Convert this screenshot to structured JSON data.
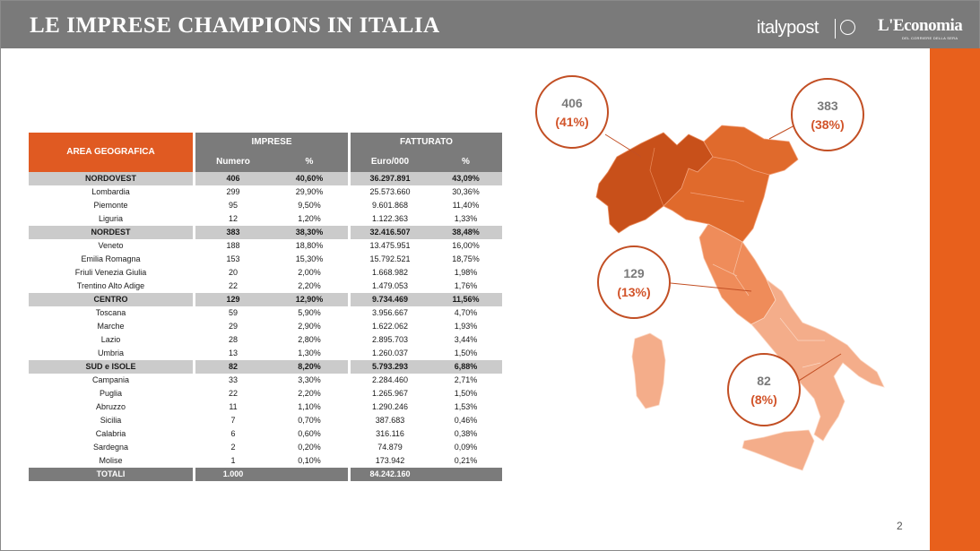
{
  "header": {
    "title": "LE IMPRESE CHAMPIONS IN ITALIA",
    "logo_italypost": "italypost",
    "logo_economia": "L'Economia",
    "logo_economia_sub": "DEL CORRIERE DELLA SERA"
  },
  "colors": {
    "accent": "#e8601c",
    "header_bg": "#7a7a7a",
    "nordovest": "#c8501a",
    "nordest": "#e06a2c",
    "centro": "#ef8c5a",
    "sud": "#f4ad8a"
  },
  "table": {
    "area_header": "AREA GEOGRAFICA",
    "imprese_header": "IMPRESE",
    "fatturato_header": "FATTURATO",
    "sub_numero": "Numero",
    "sub_pct1": "%",
    "sub_euro": "Euro/000",
    "sub_pct2": "%",
    "rows": [
      {
        "type": "region",
        "name": "NORDOVEST",
        "numero": "406",
        "pct": "40,60%",
        "euro": "36.297.891",
        "pct2": "43,09%"
      },
      {
        "type": "sub",
        "name": "Lombardia",
        "numero": "299",
        "pct": "29,90%",
        "euro": "25.573.660",
        "pct2": "30,36%"
      },
      {
        "type": "sub",
        "name": "Piemonte",
        "numero": "95",
        "pct": "9,50%",
        "euro": "9.601.868",
        "pct2": "11,40%"
      },
      {
        "type": "sub",
        "name": "Liguria",
        "numero": "12",
        "pct": "1,20%",
        "euro": "1.122.363",
        "pct2": "1,33%"
      },
      {
        "type": "region",
        "name": "NORDEST",
        "numero": "383",
        "pct": "38,30%",
        "euro": "32.416.507",
        "pct2": "38,48%"
      },
      {
        "type": "sub",
        "name": "Veneto",
        "numero": "188",
        "pct": "18,80%",
        "euro": "13.475.951",
        "pct2": "16,00%"
      },
      {
        "type": "sub",
        "name": "Emilia Romagna",
        "numero": "153",
        "pct": "15,30%",
        "euro": "15.792.521",
        "pct2": "18,75%"
      },
      {
        "type": "sub",
        "name": "Friuli Venezia Giulia",
        "numero": "20",
        "pct": "2,00%",
        "euro": "1.668.982",
        "pct2": "1,98%"
      },
      {
        "type": "sub",
        "name": "Trentino Alto Adige",
        "numero": "22",
        "pct": "2,20%",
        "euro": "1.479.053",
        "pct2": "1,76%"
      },
      {
        "type": "region",
        "name": "CENTRO",
        "numero": "129",
        "pct": "12,90%",
        "euro": "9.734.469",
        "pct2": "11,56%"
      },
      {
        "type": "sub",
        "name": "Toscana",
        "numero": "59",
        "pct": "5,90%",
        "euro": "3.956.667",
        "pct2": "4,70%"
      },
      {
        "type": "sub",
        "name": "Marche",
        "numero": "29",
        "pct": "2,90%",
        "euro": "1.622.062",
        "pct2": "1,93%"
      },
      {
        "type": "sub",
        "name": "Lazio",
        "numero": "28",
        "pct": "2,80%",
        "euro": "2.895.703",
        "pct2": "3,44%"
      },
      {
        "type": "sub",
        "name": "Umbria",
        "numero": "13",
        "pct": "1,30%",
        "euro": "1.260.037",
        "pct2": "1,50%"
      },
      {
        "type": "region",
        "name": "SUD e ISOLE",
        "numero": "82",
        "pct": "8,20%",
        "euro": "5.793.293",
        "pct2": "6,88%"
      },
      {
        "type": "sub",
        "name": "Campania",
        "numero": "33",
        "pct": "3,30%",
        "euro": "2.284.460",
        "pct2": "2,71%"
      },
      {
        "type": "sub",
        "name": "Puglia",
        "numero": "22",
        "pct": "2,20%",
        "euro": "1.265.967",
        "pct2": "1,50%"
      },
      {
        "type": "sub",
        "name": "Abruzzo",
        "numero": "11",
        "pct": "1,10%",
        "euro": "1.290.246",
        "pct2": "1,53%"
      },
      {
        "type": "sub",
        "name": "Sicilia",
        "numero": "7",
        "pct": "0,70%",
        "euro": "387.683",
        "pct2": "0,46%"
      },
      {
        "type": "sub",
        "name": "Calabria",
        "numero": "6",
        "pct": "0,60%",
        "euro": "316.116",
        "pct2": "0,38%"
      },
      {
        "type": "sub",
        "name": "Sardegna",
        "numero": "2",
        "pct": "0,20%",
        "euro": "74.879",
        "pct2": "0,09%"
      },
      {
        "type": "sub",
        "name": "Molise",
        "numero": "1",
        "pct": "0,10%",
        "euro": "173.942",
        "pct2": "0,21%"
      },
      {
        "type": "total",
        "name": "TOTALI",
        "numero": "1.000",
        "pct": "",
        "euro": "84.242.160",
        "pct2": ""
      }
    ]
  },
  "map": {
    "callouts": [
      {
        "id": "nordovest",
        "num": "406",
        "pct": "(41%)"
      },
      {
        "id": "nordest",
        "num": "383",
        "pct": "(38%)"
      },
      {
        "id": "centro",
        "num": "129",
        "pct": "(13%)"
      },
      {
        "id": "sud",
        "num": "82",
        "pct": "(8%)"
      }
    ]
  },
  "page_number": "2"
}
